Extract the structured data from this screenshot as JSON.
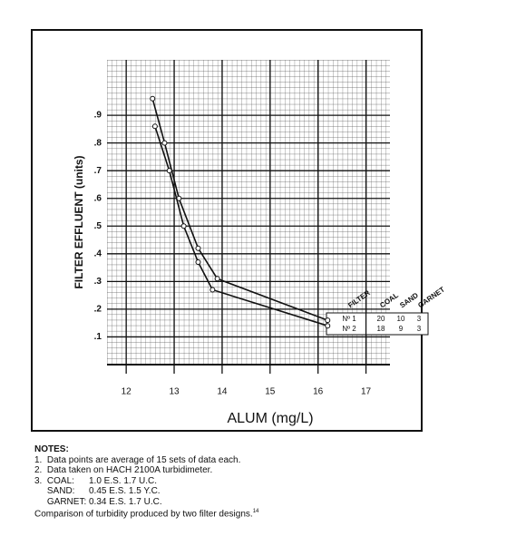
{
  "chart_data": {
    "type": "line",
    "x_label": "ALUM (mg/L)",
    "y_label": "FILTER EFFLUENT (units)",
    "xlim": [
      11.6,
      17.5
    ],
    "xticks": [
      12,
      13,
      14,
      15,
      16,
      17
    ],
    "ylim": [
      0,
      1.1
    ],
    "yticks": [
      {
        "value": 0.1,
        "label": ".1"
      },
      {
        "value": 0.2,
        "label": ".2"
      },
      {
        "value": 0.3,
        "label": ".3"
      },
      {
        "value": 0.4,
        "label": ".4"
      },
      {
        "value": 0.5,
        "label": ".5"
      },
      {
        "value": 0.6,
        "label": ".6"
      },
      {
        "value": 0.7,
        "label": ".7"
      },
      {
        "value": 0.8,
        "label": ".8"
      },
      {
        "value": 0.9,
        "label": ".9"
      }
    ],
    "grid": true,
    "table_header": [
      "FILTER",
      "COAL",
      "SAND",
      "GARNET"
    ],
    "series": [
      {
        "name": "Nº 1",
        "color": "#111111",
        "coal": 20,
        "sand": 10,
        "garnet": 3,
        "x": [
          12.55,
          12.8,
          13.1,
          13.5,
          13.9,
          16.2
        ],
        "values": [
          0.96,
          0.8,
          0.6,
          0.42,
          0.31,
          0.16
        ]
      },
      {
        "name": "Nº 2",
        "color": "#111111",
        "coal": 18,
        "sand": 9,
        "garnet": 3,
        "x": [
          12.6,
          12.9,
          13.2,
          13.5,
          13.8,
          16.2
        ],
        "values": [
          0.86,
          0.7,
          0.5,
          0.37,
          0.27,
          0.14
        ]
      }
    ]
  },
  "notes": {
    "heading": "NOTES:",
    "items": [
      "1.  Data points are average of 15 sets of data each.",
      "2.  Data taken on HACH 2100A turbidimeter."
    ],
    "media": [
      [
        "3.  COAL:",
        "1.0 E.S. 1.7 U.C."
      ],
      [
        "     SAND:",
        "0.45 E.S. 1.5 Y.C."
      ],
      [
        "     GARNET:",
        "0.34 E.S. 1.7 U.C."
      ]
    ],
    "caption": "Comparison of turbidity produced by two filter designs.",
    "caption_ref": "14"
  }
}
